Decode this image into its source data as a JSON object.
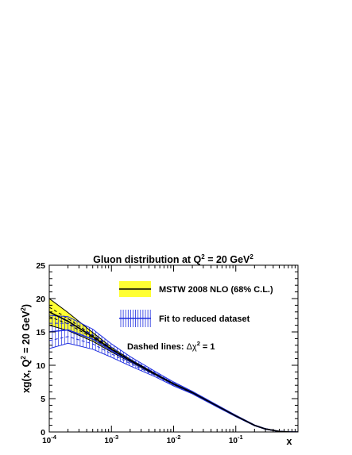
{
  "chart_data": {
    "type": "line",
    "title": {
      "main": "Gluon distribution at Q",
      "sup": "2",
      "mid": " = 20 GeV",
      "sup2": "2"
    },
    "ylabel": {
      "a": "xg(x, Q",
      "sup": "2",
      "b": " = 20 GeV",
      "sup2": "2",
      "c": ")"
    },
    "xlabel": "x",
    "x_scale": "log",
    "xlim": [
      0.0001,
      1
    ],
    "ylim": [
      0,
      25
    ],
    "y_ticks": [
      0,
      5,
      10,
      15,
      20,
      25
    ],
    "x_ticks": [
      {
        "value": 0.0001,
        "base": "10",
        "exp": "-4"
      },
      {
        "value": 0.001,
        "base": "10",
        "exp": "-3"
      },
      {
        "value": 0.01,
        "base": "10",
        "exp": "-2"
      },
      {
        "value": 0.1,
        "base": "10",
        "exp": "-1"
      }
    ],
    "legend": {
      "placement": "top-right",
      "entries": [
        "MSTW 2008 NLO (68% C.L.)",
        "Fit to reduced dataset"
      ],
      "note_prefix": "Dashed lines: ",
      "note_delta": "Δχ",
      "note_sup": "2",
      "note_suffix": " = 1"
    },
    "colors": {
      "mstw_band": "#ffff33",
      "mstw_line": "#000000",
      "fit_line": "#1f2ee0"
    },
    "series": [
      {
        "name": "MSTW 2008 NLO (68% C.L.)",
        "x": [
          0.0001,
          0.0002,
          0.0005,
          0.001,
          0.002,
          0.005,
          0.01,
          0.02,
          0.05,
          0.1,
          0.2,
          0.3,
          0.5,
          0.7,
          1.0
        ],
        "central": [
          18.0,
          16.6,
          14.3,
          12.4,
          10.7,
          8.7,
          7.2,
          5.9,
          3.9,
          2.4,
          1.0,
          0.45,
          0.08,
          0.01,
          0.0
        ],
        "upper": [
          20.0,
          17.9,
          14.9,
          12.7,
          10.9,
          8.8,
          7.3,
          6.0,
          4.0,
          2.5,
          1.05,
          0.5,
          0.1,
          0.02,
          0.0
        ],
        "lower": [
          16.0,
          15.2,
          13.6,
          12.0,
          10.5,
          8.6,
          7.1,
          5.8,
          3.8,
          2.3,
          0.95,
          0.4,
          0.06,
          0.01,
          0.0
        ],
        "dashed_upper": [
          18.7,
          17.0,
          14.5,
          12.5,
          10.8,
          8.75,
          7.25,
          5.95,
          3.95,
          2.45,
          1.02,
          0.47,
          0.09,
          0.015,
          0.0
        ],
        "dashed_lower": [
          17.3,
          16.2,
          14.1,
          12.3,
          10.6,
          8.65,
          7.15,
          5.85,
          3.85,
          2.35,
          0.98,
          0.43,
          0.07,
          0.01,
          0.0
        ]
      },
      {
        "name": "Fit to reduced dataset",
        "x": [
          0.0001,
          0.0002,
          0.0005,
          0.001,
          0.002,
          0.005,
          0.01,
          0.02,
          0.05,
          0.1,
          0.2,
          0.3,
          0.5,
          0.7,
          1.0
        ],
        "central": [
          15.0,
          15.3,
          13.9,
          12.2,
          10.6,
          8.7,
          7.2,
          5.9,
          3.9,
          2.4,
          1.0,
          0.45,
          0.08,
          0.01,
          0.0
        ],
        "upper": [
          17.5,
          17.3,
          15.4,
          13.2,
          11.3,
          9.1,
          7.5,
          6.1,
          4.05,
          2.5,
          1.06,
          0.5,
          0.1,
          0.02,
          0.0
        ],
        "lower": [
          12.5,
          13.3,
          12.4,
          11.2,
          9.9,
          8.3,
          6.9,
          5.7,
          3.75,
          2.3,
          0.94,
          0.4,
          0.06,
          0.0,
          0.0
        ],
        "dashed_upper": [
          16.3,
          16.3,
          14.6,
          12.7,
          10.95,
          8.9,
          7.35,
          6.0,
          3.97,
          2.45,
          1.03,
          0.47,
          0.09,
          0.015,
          0.0
        ],
        "dashed_lower": [
          13.7,
          14.3,
          13.2,
          11.7,
          10.25,
          8.5,
          7.05,
          5.8,
          3.83,
          2.35,
          0.97,
          0.43,
          0.07,
          0.005,
          0.0
        ]
      }
    ]
  }
}
